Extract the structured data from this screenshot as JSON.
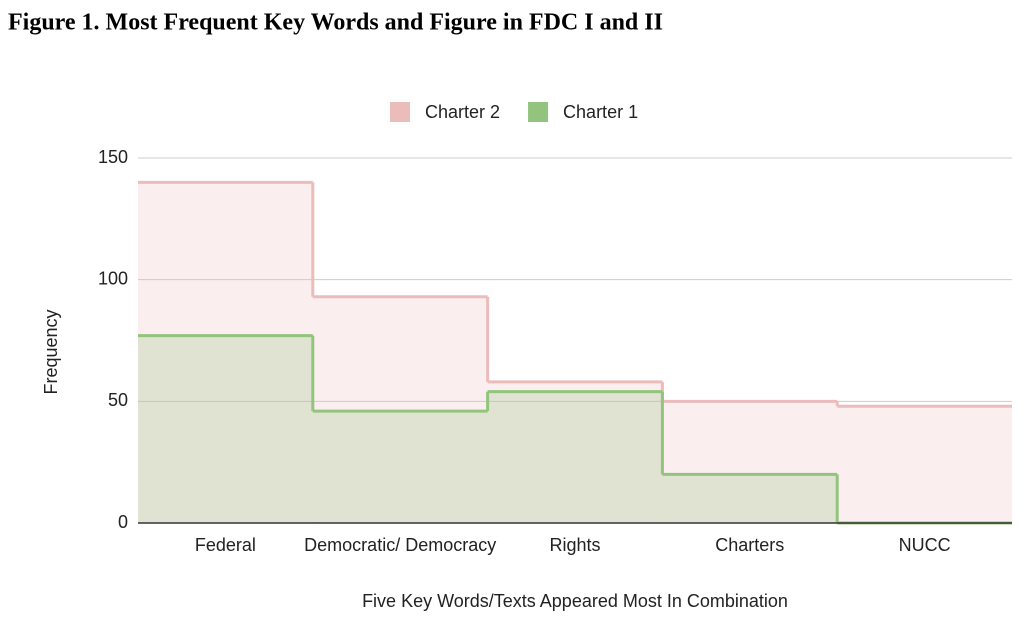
{
  "chart_data": {
    "type": "stepped-area",
    "title": "Figure 1. Most Frequent Key Words and Figure in FDC I and II",
    "x_label": "Five Key Words/Texts Appeared Most In Combination",
    "y_label": "Frequency",
    "categories": [
      "Federal",
      "Democratic/ Democracy",
      "Rights",
      "Charters",
      "NUCC"
    ],
    "series": [
      {
        "name": "Charter 2",
        "color": "#ecbcbc",
        "values": [
          140,
          93,
          58,
          50,
          48
        ]
      },
      {
        "name": "Charter 1",
        "color": "#93c47d",
        "values": [
          77,
          46,
          54,
          20,
          0
        ]
      }
    ],
    "ylim": [
      0,
      150
    ],
    "yticks": [
      0,
      50,
      100,
      150
    ],
    "grid": true,
    "legend": "top"
  }
}
